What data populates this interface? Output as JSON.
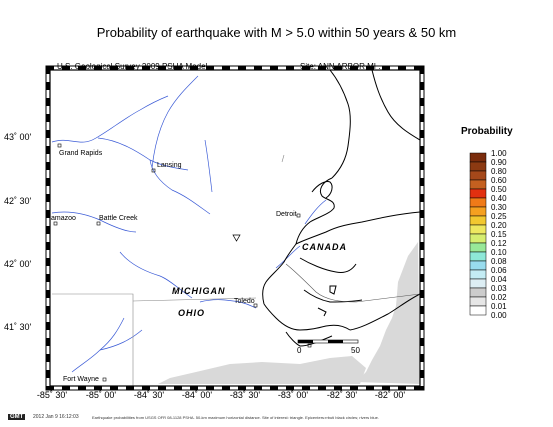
{
  "title": "Probability of earthquake with M > 5.0 within 50 years & 50 km",
  "subtitle_left": "U.S. Geological Survey 2009 PSHA Model",
  "subtitle_right": "Site: ANN  ARBOR MI .",
  "latitude_labels": [
    "43˚ 00'",
    "42˚ 30'",
    "42˚ 00'",
    "41˚ 30'"
  ],
  "longitude_labels": [
    "-85˚ 30'",
    "-85˚ 00'",
    "-84˚ 30'",
    "-84˚ 00'",
    "-83˚ 30'",
    "-83˚ 00'",
    "-82˚ 30'",
    "-82˚ 00'"
  ],
  "cities": {
    "grand_rapids": "Grand Rapids",
    "lansing": "Lansing",
    "kalamazoo": "amazoo",
    "battle_creek": "Battle Creek",
    "detroit": "Detroit",
    "toledo": "Toledo",
    "fort_wayne": "Fort Wayne"
  },
  "regions": {
    "canada": "CANADA",
    "michigan": "MICHIGAN",
    "ohio": "OHIO"
  },
  "scale_bar": {
    "start": "0",
    "end": "50"
  },
  "legend": {
    "title": "Probability",
    "levels": [
      "1.00",
      "0.90",
      "0.80",
      "0.60",
      "0.50",
      "0.40",
      "0.30",
      "0.25",
      "0.20",
      "0.15",
      "0.12",
      "0.10",
      "0.08",
      "0.06",
      "0.04",
      "0.03",
      "0.02",
      "0.01",
      "0.00"
    ],
    "colors": [
      "#7a2c0c",
      "#8c3a12",
      "#a5481a",
      "#c46020",
      "#e23010",
      "#f07a18",
      "#f5a020",
      "#f2c830",
      "#eee860",
      "#d6ee70",
      "#98e898",
      "#8ee8d8",
      "#98dcee",
      "#c4ecf4",
      "#ddeef4",
      "#cccccc",
      "#e6e6e6",
      "#ffffff"
    ]
  },
  "footer": {
    "badge": "GMT",
    "stamp": "2012 Jan  9 16:12:03",
    "note": "Earthquake probabilities from USGS OFR 08-1128 PSHA. 50-km maximum horizontal distance. Site of interest: triangle. Epicenters:rrbuti black circles; rivers blue."
  },
  "colors": {
    "river": "#3b5bd6",
    "shading": "#d9d9d9"
  }
}
